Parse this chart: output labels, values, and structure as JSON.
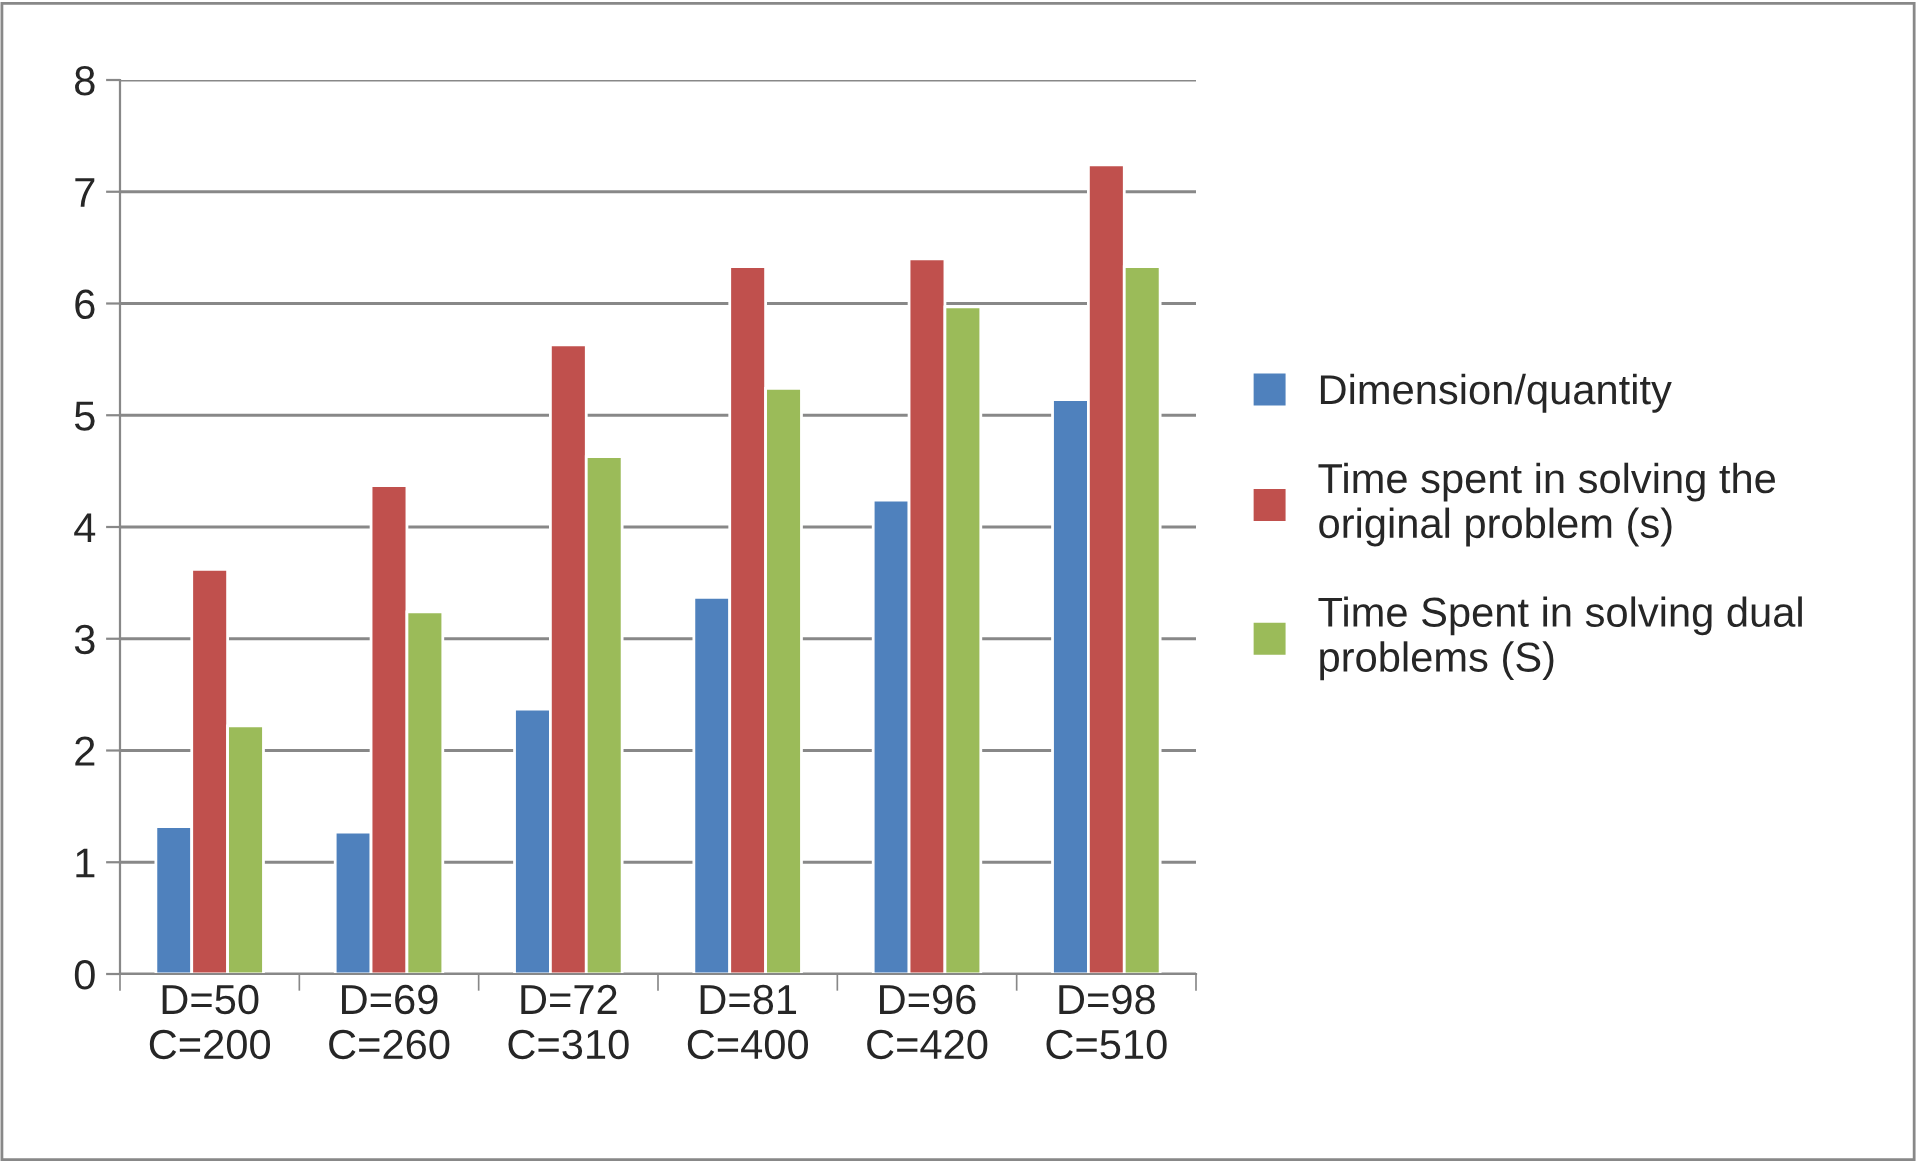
{
  "chart_data": {
    "type": "bar",
    "categories": [
      "D=50\nC=200",
      "D=69\nC=260",
      "D=72\nC=310",
      "D=81\nC=400",
      "D=96\nC=420",
      "D=98\nC=510"
    ],
    "series": [
      {
        "name": "Dimension/quantity",
        "color": "#4f81bd",
        "values": [
          1.32,
          1.27,
          2.37,
          3.37,
          4.24,
          5.14
        ]
      },
      {
        "name": "Time spent in solving the original problem (s)",
        "color": "#c0504d",
        "values": [
          3.62,
          4.37,
          5.63,
          6.33,
          6.4,
          7.24
        ]
      },
      {
        "name": "Time Spent in solving dual problems (S)",
        "color": "#9bbb59",
        "values": [
          2.22,
          3.24,
          4.63,
          5.24,
          5.97,
          6.33
        ]
      }
    ],
    "ylim": [
      0,
      8
    ],
    "yticks": [
      0,
      1,
      2,
      3,
      4,
      5,
      6,
      7,
      8
    ],
    "grid": "y",
    "legend": "right"
  }
}
